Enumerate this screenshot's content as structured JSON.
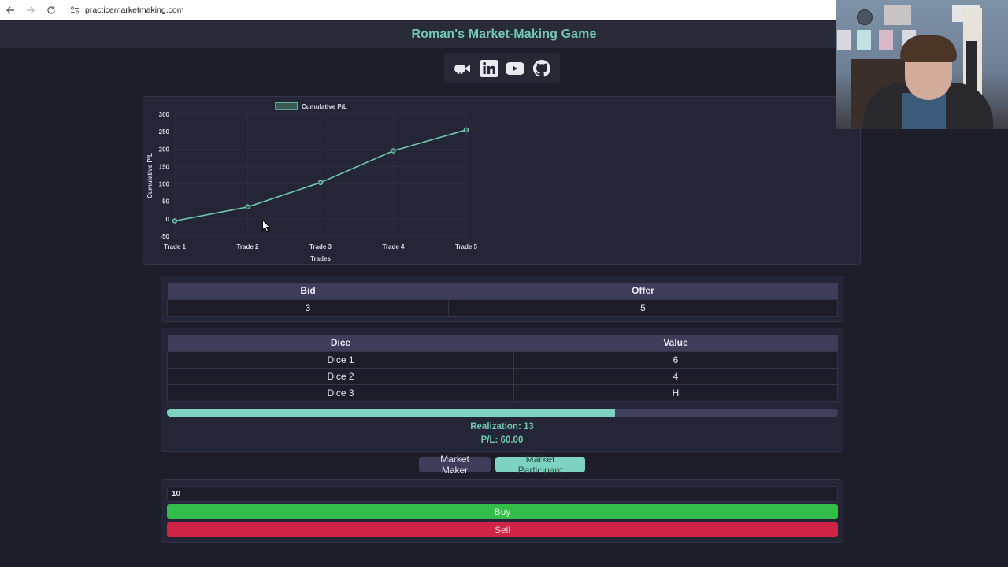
{
  "browser": {
    "url": "practicemarketmaking.com",
    "back_icon": "arrow-left-icon",
    "forward_icon": "arrow-right-icon",
    "reload_icon": "reload-icon",
    "site_info_icon": "tune-icon"
  },
  "header": {
    "title": "Roman's Market-Making Game",
    "title_color": "#72c7b0"
  },
  "social_links": [
    {
      "name": "video-camera",
      "icon": "video-camera-icon"
    },
    {
      "name": "linkedin",
      "icon": "linkedin-icon"
    },
    {
      "name": "youtube",
      "icon": "youtube-icon"
    },
    {
      "name": "github",
      "icon": "github-icon"
    }
  ],
  "chart_data": {
    "type": "line",
    "title": "",
    "legend": [
      "Cumulative P/L"
    ],
    "legend_position": "top",
    "categories": [
      "Trade 1",
      "Trade 2",
      "Trade 3",
      "Trade 4",
      "Trade 5"
    ],
    "series": [
      {
        "name": "Cumulative P/L",
        "values": [
          -6,
          34,
          104,
          195,
          255
        ],
        "color": "#72c7b0"
      }
    ],
    "xlabel": "Trades",
    "ylabel": "Cumulative P/L",
    "ylim": [
      -50,
      300
    ],
    "yticks": [
      300,
      250,
      200,
      150,
      100,
      50,
      0,
      -50
    ],
    "grid": true
  },
  "quote_table": {
    "headers": [
      "Bid",
      "Offer"
    ],
    "values": [
      "3",
      "5"
    ]
  },
  "dice_table": {
    "headers": [
      "Dice",
      "Value"
    ],
    "rows": [
      [
        "Dice 1",
        "6"
      ],
      [
        "Dice 2",
        "4"
      ],
      [
        "Dice 3",
        "H"
      ]
    ]
  },
  "progress": {
    "percent": 66.8,
    "fill_color": "#7ed3c0",
    "track_color": "#403f5c"
  },
  "realization_text": "Realization: 13",
  "pl_text": "P/L: 60.00",
  "role_toggle": {
    "market_maker": "Market Maker",
    "market_participant": "Market Participant",
    "active": "Market Participant"
  },
  "trade": {
    "quantity_value": "10",
    "buy_label": "Buy",
    "sell_label": "Sell",
    "buy_color": "#33bd4b",
    "sell_color": "#cf2445"
  },
  "webcam": {
    "label": "presenter webcam overlay"
  }
}
